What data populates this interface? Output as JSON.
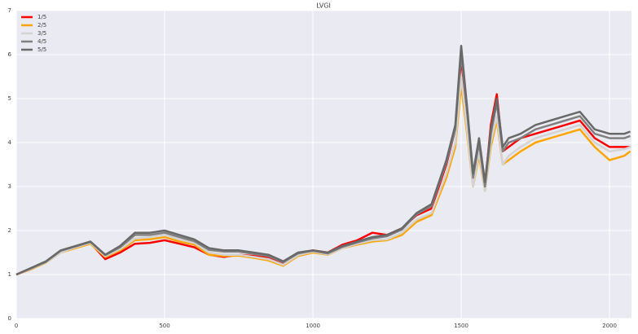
{
  "chart_data": {
    "type": "line",
    "title": "LVGI",
    "x": [
      0,
      50,
      100,
      150,
      200,
      250,
      300,
      350,
      400,
      450,
      500,
      550,
      600,
      650,
      700,
      750,
      800,
      850,
      900,
      950,
      1000,
      1050,
      1100,
      1150,
      1200,
      1250,
      1300,
      1350,
      1400,
      1450,
      1480,
      1500,
      1520,
      1540,
      1560,
      1580,
      1600,
      1620,
      1640,
      1660,
      1700,
      1750,
      1800,
      1850,
      1900,
      1950,
      2000,
      2050,
      2070
    ],
    "series": [
      {
        "name": "1/5",
        "color": "#ff0000",
        "values": [
          1.0,
          1.12,
          1.28,
          1.52,
          1.62,
          1.72,
          1.35,
          1.5,
          1.7,
          1.72,
          1.78,
          1.7,
          1.62,
          1.45,
          1.4,
          1.45,
          1.42,
          1.38,
          1.25,
          1.45,
          1.55,
          1.5,
          1.68,
          1.78,
          1.95,
          1.9,
          2.05,
          2.35,
          2.5,
          3.5,
          4.3,
          5.9,
          4.6,
          3.2,
          4.0,
          3.0,
          4.4,
          5.1,
          3.8,
          3.9,
          4.1,
          4.2,
          4.3,
          4.4,
          4.5,
          4.1,
          3.9,
          3.9,
          3.9
        ]
      },
      {
        "name": "2/5",
        "color": "#ffa500",
        "values": [
          1.0,
          1.12,
          1.27,
          1.5,
          1.6,
          1.7,
          1.4,
          1.55,
          1.78,
          1.8,
          1.85,
          1.75,
          1.68,
          1.45,
          1.42,
          1.43,
          1.38,
          1.32,
          1.2,
          1.42,
          1.5,
          1.45,
          1.6,
          1.68,
          1.75,
          1.78,
          1.9,
          2.2,
          2.35,
          3.2,
          3.9,
          5.3,
          4.2,
          3.0,
          3.7,
          2.9,
          3.9,
          4.5,
          3.5,
          3.6,
          3.8,
          4.0,
          4.1,
          4.2,
          4.3,
          3.9,
          3.6,
          3.7,
          3.8
        ]
      },
      {
        "name": "3/5",
        "color": "#d3d3d3",
        "values": [
          1.0,
          1.13,
          1.28,
          1.5,
          1.62,
          1.72,
          1.42,
          1.58,
          1.82,
          1.85,
          1.9,
          1.8,
          1.72,
          1.5,
          1.45,
          1.45,
          1.4,
          1.35,
          1.22,
          1.44,
          1.52,
          1.46,
          1.6,
          1.7,
          1.78,
          1.8,
          1.95,
          2.25,
          2.4,
          3.3,
          4.0,
          5.5,
          4.3,
          3.0,
          3.8,
          2.9,
          4.0,
          4.6,
          3.5,
          3.7,
          3.9,
          4.1,
          4.2,
          4.3,
          4.4,
          4.0,
          3.8,
          3.85,
          3.9
        ]
      },
      {
        "name": "4/5",
        "color": "#808080",
        "values": [
          1.0,
          1.14,
          1.29,
          1.54,
          1.64,
          1.74,
          1.44,
          1.62,
          1.9,
          1.9,
          1.95,
          1.85,
          1.76,
          1.56,
          1.52,
          1.52,
          1.47,
          1.42,
          1.28,
          1.48,
          1.54,
          1.48,
          1.63,
          1.73,
          1.82,
          1.87,
          2.02,
          2.37,
          2.56,
          3.55,
          4.3,
          6.0,
          4.7,
          3.2,
          4.0,
          3.0,
          4.2,
          4.9,
          3.8,
          4.0,
          4.1,
          4.3,
          4.4,
          4.5,
          4.6,
          4.2,
          4.1,
          4.1,
          4.15
        ]
      },
      {
        "name": "5/5",
        "color": "#696969",
        "values": [
          1.0,
          1.15,
          1.3,
          1.55,
          1.65,
          1.75,
          1.45,
          1.65,
          1.95,
          1.95,
          2.0,
          1.9,
          1.8,
          1.6,
          1.55,
          1.55,
          1.5,
          1.45,
          1.3,
          1.5,
          1.55,
          1.5,
          1.65,
          1.75,
          1.85,
          1.9,
          2.05,
          2.4,
          2.6,
          3.6,
          4.4,
          6.2,
          4.8,
          3.3,
          4.1,
          3.1,
          4.3,
          5.0,
          3.9,
          4.1,
          4.2,
          4.4,
          4.5,
          4.6,
          4.7,
          4.3,
          4.2,
          4.2,
          4.25
        ]
      }
    ],
    "xlim": [
      0,
      2074
    ],
    "ylim": [
      0,
      7
    ],
    "xticks": [
      0,
      500,
      1000,
      1500,
      2000
    ],
    "yticks": [
      0,
      1,
      2,
      3,
      4,
      5,
      6,
      7
    ],
    "grid": true,
    "legend": "upper-left"
  }
}
